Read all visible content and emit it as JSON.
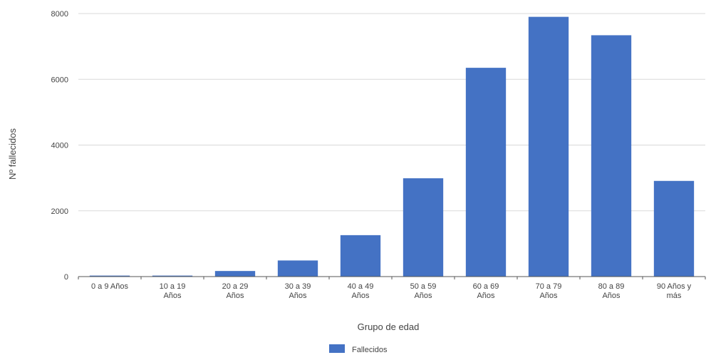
{
  "chart_data": {
    "type": "bar",
    "title": "",
    "xlabel": "Grupo de edad",
    "ylabel": "Nº fallecidos",
    "categories": [
      [
        "0 a 9 Años"
      ],
      [
        "10 a 19",
        "Años"
      ],
      [
        "20 a 29",
        "Años"
      ],
      [
        "30 a 39",
        "Años"
      ],
      [
        "40 a 49",
        "Años"
      ],
      [
        "50 a 59",
        "Años"
      ],
      [
        "60 a 69",
        "Años"
      ],
      [
        "70 a 79",
        "Años"
      ],
      [
        "80 a 89",
        "Años"
      ],
      [
        "90 Años y",
        "más"
      ]
    ],
    "series": [
      {
        "name": "Fallecidos",
        "color": "#4472c4",
        "values": [
          30,
          30,
          170,
          490,
          1260,
          2990,
          6350,
          7900,
          7340,
          2910
        ]
      }
    ],
    "ylim": [
      0,
      8000
    ],
    "yticks": [
      0,
      2000,
      4000,
      6000,
      8000
    ],
    "grid": true,
    "legend": "bottom-center"
  }
}
